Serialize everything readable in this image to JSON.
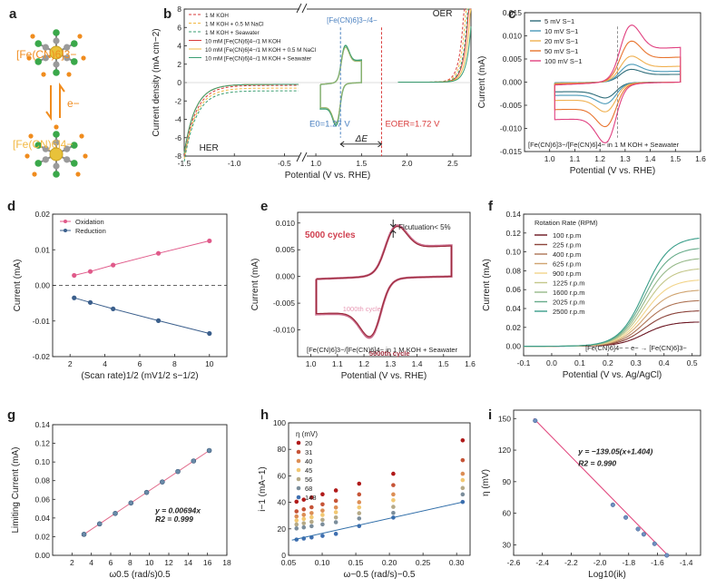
{
  "colors": {
    "axis": "#222222",
    "fe3": "#f08c1e",
    "fe4": "#f2b843",
    "teal": "#3a9e72",
    "red": "#d83a3a",
    "blue": "#4a80c0",
    "oxidation": "#e05a8a",
    "reduction": "#3b5f8c",
    "dark_red": "#9c2a3a",
    "fit_red": "#e0427a",
    "lin_blue": "#2f6da8"
  },
  "panel_a": {
    "letter": "a",
    "fe3_label": "[Fe(CN)6]3−",
    "fe4_label": "[Fe(CN)6]4−",
    "electron_label": "e−"
  },
  "chart_data": [
    {
      "id": "b",
      "type": "line",
      "xlabel": "Potential (V vs. RHE)",
      "ylabel": "Current density (mA cm−2)",
      "xlim": [
        -1.5,
        2.7
      ],
      "ylim": [
        -8,
        8
      ],
      "xticks": [
        "-1.5",
        "-1.0",
        "-0.5",
        "1.0",
        "1.5",
        "2.0",
        "2.5"
      ],
      "yticks": [
        "-8",
        "-6",
        "-4",
        "-2",
        "0",
        "2",
        "4",
        "6",
        "8"
      ],
      "legend": [
        "1 M KOH",
        "1 M KOH + 0.5 M NaCl",
        "1 M KOH + Seawater",
        "10 mM [Fe(CN)6]4−/1 M KOH",
        "10 mM [Fe(CN)6]4−/1 M KOH + 0.5 M NaCl",
        "10 mM [Fe(CN)6]4−/1 M KOH + Seawater"
      ],
      "annotations": {
        "her": "HER",
        "oer": "OER",
        "redox": "[Fe(CN)6]3−/4−",
        "e0": "E0=1.27 V",
        "eoer": "EOER=1.72 V",
        "delta": "ΔE"
      },
      "e0": 1.27,
      "eoer": 1.72
    },
    {
      "id": "c",
      "type": "line",
      "xlabel": "Potential (V vs. RHE)",
      "ylabel": "Current (mA)",
      "xlim": [
        0.9,
        1.6
      ],
      "ylim": [
        -0.015,
        0.015
      ],
      "xticks": [
        "1.0",
        "1.1",
        "1.2",
        "1.3",
        "1.4",
        "1.5",
        "1.6"
      ],
      "yticks": [
        "-0.015",
        "-0.010",
        "-0.005",
        "0.000",
        "0.005",
        "0.010",
        "0.015"
      ],
      "series": [
        {
          "name": "5 mV S−1",
          "ipa": 0.0028,
          "ipc": -0.0035
        },
        {
          "name": "10 mV S−1",
          "ipa": 0.0039,
          "ipc": -0.0048
        },
        {
          "name": "20 mV S−1",
          "ipa": 0.0057,
          "ipc": -0.0066
        },
        {
          "name": "50 mV S−1",
          "ipa": 0.009,
          "ipc": -0.0099
        },
        {
          "name": "100 mV S−1",
          "ipa": 0.0125,
          "ipc": -0.0135
        }
      ],
      "annotation": "[Fe(CN)6]3−/[Fe(CN)6]4− in 1 M KOH + Seawater"
    },
    {
      "id": "d",
      "type": "scatter",
      "xlabel": "(Scan rate)1/2 (mV1/2 s−1/2)",
      "ylabel": "Current (mA)",
      "xlim": [
        1,
        11
      ],
      "ylim": [
        -0.02,
        0.02
      ],
      "xticks": [
        "2",
        "4",
        "6",
        "8",
        "10"
      ],
      "yticks": [
        "-0.02",
        "-0.01",
        "0.00",
        "0.01",
        "0.02"
      ],
      "x": [
        2.236,
        3.162,
        4.472,
        7.071,
        10.0
      ],
      "series": [
        {
          "name": "Oxidation",
          "values": [
            0.0028,
            0.0039,
            0.0057,
            0.009,
            0.0125
          ]
        },
        {
          "name": "Reduction",
          "values": [
            -0.0035,
            -0.0048,
            -0.0066,
            -0.0099,
            -0.0135
          ]
        }
      ]
    },
    {
      "id": "e",
      "type": "line",
      "xlabel": "Potential (V vs. RHE)",
      "ylabel": "Current (mA)",
      "xlim": [
        0.95,
        1.6
      ],
      "ylim": [
        -0.015,
        0.012
      ],
      "xticks": [
        "1.0",
        "1.1",
        "1.2",
        "1.3",
        "1.4",
        "1.5",
        "1.6"
      ],
      "yticks": [
        "-0.010",
        "-0.005",
        "0.000",
        "0.005",
        "0.010"
      ],
      "labels": {
        "cycles": "5000 cycles",
        "fluct": "Flcutuation< 5%",
        "c1000": "1000th cycle",
        "c5000": "5000th cycle",
        "sub": "[Fe(CN)6]3−/[Fe(CN)6]4− in 1 M KOH + Seawater"
      },
      "ipa": 0.0097,
      "ipc": -0.0118
    },
    {
      "id": "f",
      "type": "line",
      "xlabel": "Potential (V vs. Ag/AgCl)",
      "ylabel": "Current (mA)",
      "xlim": [
        -0.1,
        0.53
      ],
      "ylim": [
        -0.01,
        0.14
      ],
      "xticks": [
        "-0.1",
        "0.0",
        "0.1",
        "0.2",
        "0.3",
        "0.4",
        "0.5"
      ],
      "yticks": [
        "0.00",
        "0.02",
        "0.04",
        "0.06",
        "0.08",
        "0.10",
        "0.12",
        "0.14"
      ],
      "legend_title": "Rotation Rate (RPM)",
      "series": [
        {
          "name": "100 r.p.m",
          "limit": 0.026
        },
        {
          "name": "225 r.p.m",
          "limit": 0.038
        },
        {
          "name": "400 r.p.m",
          "limit": 0.049
        },
        {
          "name": "625 r.p.m",
          "limit": 0.06
        },
        {
          "name": "900 r.p.m",
          "limit": 0.071
        },
        {
          "name": "1225 r.p.m",
          "limit": 0.083
        },
        {
          "name": "1600 r.p.m",
          "limit": 0.094
        },
        {
          "name": "2025 r.p.m",
          "limit": 0.105
        },
        {
          "name": "2500 r.p.m",
          "limit": 0.116
        }
      ],
      "annotation": "[Fe(CN)6]4− − e− → [Fe(CN)6]3−"
    },
    {
      "id": "g",
      "type": "scatter",
      "xlabel": "ω0.5 (rad/s)0.5",
      "ylabel": "Limiting Current (mA)",
      "xlim": [
        0,
        18
      ],
      "ylim": [
        0,
        0.14
      ],
      "xticks": [
        "2",
        "4",
        "6",
        "8",
        "10",
        "12",
        "14",
        "16",
        "18"
      ],
      "yticks": [
        "0.00",
        "0.02",
        "0.04",
        "0.06",
        "0.08",
        "0.10",
        "0.12",
        "0.14"
      ],
      "x": [
        3.24,
        4.85,
        6.47,
        8.09,
        9.71,
        11.33,
        12.94,
        14.56,
        16.18
      ],
      "values": [
        0.0225,
        0.0337,
        0.0449,
        0.0561,
        0.0674,
        0.0786,
        0.0898,
        0.1011,
        0.1123
      ],
      "slope": 0.00694,
      "equation": "y = 0.00694x",
      "r2": "R2 = 0.999"
    },
    {
      "id": "h",
      "type": "scatter",
      "xlabel": "ω−0.5 (rad/s)−0.5",
      "ylabel": "i−1 (mA−1)",
      "xlim": [
        0.05,
        0.32
      ],
      "ylim": [
        0,
        100
      ],
      "xticks": [
        "0.05",
        "0.10",
        "0.15",
        "0.20",
        "0.25",
        "0.30"
      ],
      "yticks": [
        "0",
        "20",
        "40",
        "60",
        "80",
        "100"
      ],
      "legend_title": "η (mV)",
      "x": [
        0.0618,
        0.0726,
        0.0842,
        0.1005,
        0.1204,
        0.155,
        0.2058,
        0.309
      ],
      "series": [
        {
          "name": "20",
          "values": [
            40.5,
            42,
            43.7,
            46.1,
            49,
            54.1,
            61.6,
            86.8
          ]
        },
        {
          "name": "31",
          "values": [
            33.2,
            34.7,
            36.3,
            38.5,
            41.2,
            46,
            53,
            71.8
          ]
        },
        {
          "name": "40",
          "values": [
            29.4,
            30.6,
            31.9,
            33.8,
            36.1,
            40.1,
            46,
            61.6
          ]
        },
        {
          "name": "45",
          "values": [
            26.4,
            27.5,
            28.8,
            30.5,
            32.5,
            36.2,
            41.6,
            56.8
          ]
        },
        {
          "name": "56",
          "values": [
            23.3,
            24.2,
            25.3,
            26.8,
            28.6,
            31.8,
            36.6,
            50.8
          ]
        },
        {
          "name": "68",
          "values": [
            20.3,
            21.1,
            22,
            23.4,
            25,
            27.8,
            32,
            46
          ]
        },
        {
          "name": "148",
          "values": [
            11.9,
            12.7,
            13.5,
            14.7,
            16.2,
            22.1,
            28.5,
            40.3
          ]
        }
      ]
    },
    {
      "id": "i",
      "type": "scatter",
      "xlabel": "Log10(ik)",
      "ylabel": "η (mV)",
      "xlim": [
        -2.6,
        -1.3
      ],
      "ylim": [
        20,
        158
      ],
      "xticks": [
        "-2.6",
        "-2.4",
        "-2.2",
        "-2.0",
        "-1.8",
        "-1.6",
        "-1.4"
      ],
      "yticks": [
        "30",
        "60",
        "90",
        "120",
        "150"
      ],
      "x": [
        -2.45,
        -1.91,
        -1.82,
        -1.735,
        -1.695,
        -1.62,
        -1.535
      ],
      "values": [
        148,
        68,
        56,
        45,
        40,
        31,
        20
      ],
      "equation": "y = −139.05(x+1.404)",
      "r2": "R2 = 0.990"
    }
  ]
}
